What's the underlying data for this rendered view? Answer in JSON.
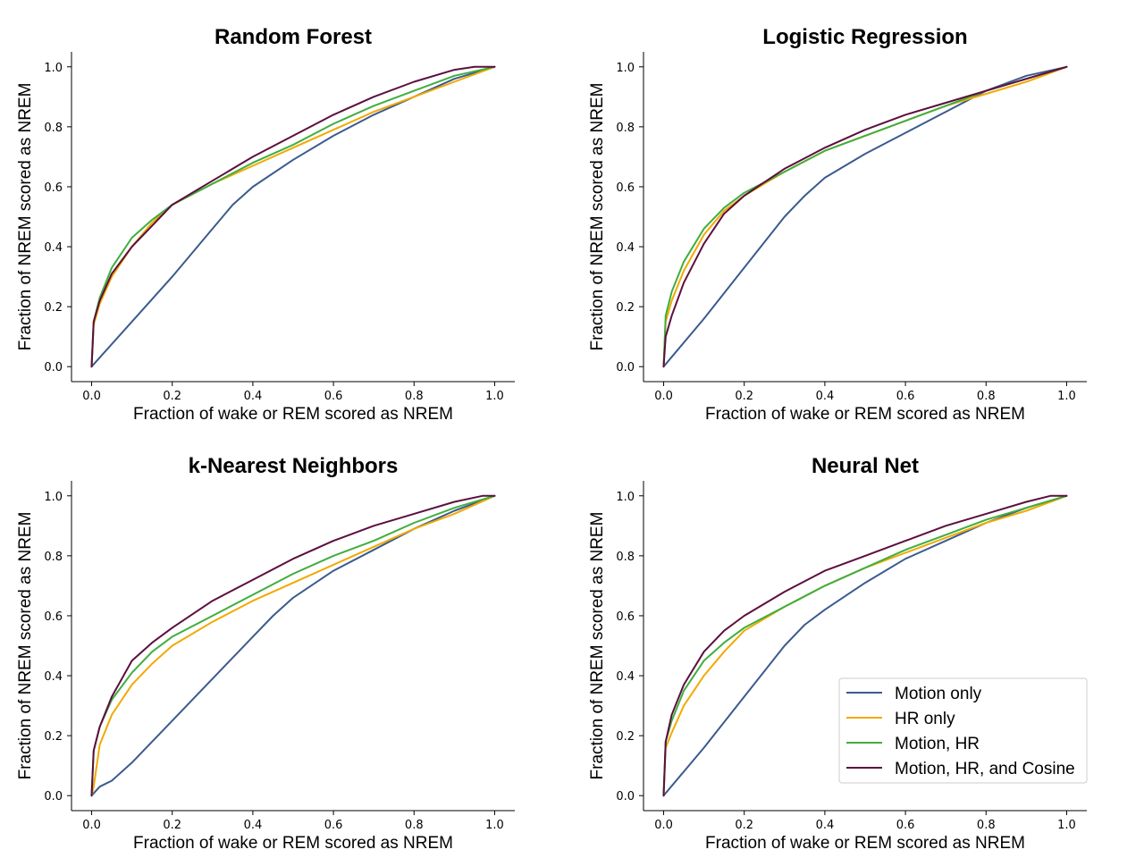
{
  "figure": {
    "legend": {
      "placement": "lower-right",
      "panel_index": 3,
      "entries": [
        "Motion only",
        "HR only",
        "Motion, HR",
        "Motion, HR, and Cosine"
      ]
    }
  },
  "chart_data": [
    {
      "type": "line",
      "title": "Random Forest",
      "xlabel": "Fraction of wake or REM scored as NREM",
      "ylabel": "Fraction of NREM scored as NREM",
      "xlim": [
        -0.05,
        1.05
      ],
      "ylim": [
        -0.05,
        1.05
      ],
      "xticks": [
        "0.0",
        "0.2",
        "0.4",
        "0.6",
        "0.8",
        "1.0"
      ],
      "yticks": [
        "0.0",
        "0.2",
        "0.4",
        "0.6",
        "0.8",
        "1.0"
      ],
      "grid": false,
      "series": [
        {
          "name": "Motion only",
          "color": "#3b5b8e",
          "x": [
            0,
            0.1,
            0.2,
            0.3,
            0.35,
            0.4,
            0.5,
            0.6,
            0.7,
            0.8,
            0.9,
            1.0
          ],
          "y": [
            0,
            0.15,
            0.3,
            0.46,
            0.54,
            0.6,
            0.69,
            0.77,
            0.84,
            0.9,
            0.96,
            1.0
          ]
        },
        {
          "name": "HR only",
          "color": "#f2a900",
          "x": [
            0,
            0.005,
            0.02,
            0.05,
            0.1,
            0.15,
            0.2,
            0.3,
            0.4,
            0.5,
            0.6,
            0.7,
            0.8,
            0.9,
            1.0
          ],
          "y": [
            0,
            0.14,
            0.21,
            0.3,
            0.4,
            0.48,
            0.54,
            0.61,
            0.67,
            0.73,
            0.79,
            0.85,
            0.9,
            0.95,
            1.0
          ]
        },
        {
          "name": "Motion, HR",
          "color": "#3fae3f",
          "x": [
            0,
            0.005,
            0.02,
            0.05,
            0.1,
            0.15,
            0.2,
            0.3,
            0.4,
            0.5,
            0.6,
            0.7,
            0.8,
            0.9,
            1.0
          ],
          "y": [
            0,
            0.15,
            0.23,
            0.33,
            0.43,
            0.49,
            0.54,
            0.61,
            0.68,
            0.74,
            0.81,
            0.87,
            0.92,
            0.97,
            1.0
          ]
        },
        {
          "name": "Motion, HR, and Cosine",
          "color": "#5c0f3e",
          "x": [
            0,
            0.005,
            0.02,
            0.05,
            0.1,
            0.15,
            0.2,
            0.3,
            0.4,
            0.5,
            0.6,
            0.7,
            0.8,
            0.9,
            0.95,
            1.0
          ],
          "y": [
            0,
            0.15,
            0.22,
            0.31,
            0.4,
            0.47,
            0.54,
            0.62,
            0.7,
            0.77,
            0.84,
            0.9,
            0.95,
            0.99,
            1.0,
            1.0
          ]
        }
      ]
    },
    {
      "type": "line",
      "title": "Logistic Regression",
      "xlabel": "Fraction of wake or REM scored as NREM",
      "ylabel": "Fraction of NREM scored as NREM",
      "xlim": [
        -0.05,
        1.05
      ],
      "ylim": [
        -0.05,
        1.05
      ],
      "xticks": [
        "0.0",
        "0.2",
        "0.4",
        "0.6",
        "0.8",
        "1.0"
      ],
      "yticks": [
        "0.0",
        "0.2",
        "0.4",
        "0.6",
        "0.8",
        "1.0"
      ],
      "grid": false,
      "series": [
        {
          "name": "Motion only",
          "color": "#3b5b8e",
          "x": [
            0,
            0.1,
            0.2,
            0.3,
            0.35,
            0.4,
            0.5,
            0.6,
            0.7,
            0.8,
            0.9,
            1.0
          ],
          "y": [
            0,
            0.16,
            0.33,
            0.5,
            0.57,
            0.63,
            0.71,
            0.78,
            0.85,
            0.92,
            0.97,
            1.0
          ]
        },
        {
          "name": "HR only",
          "color": "#f2a900",
          "x": [
            0,
            0.005,
            0.02,
            0.05,
            0.1,
            0.15,
            0.2,
            0.3,
            0.4,
            0.5,
            0.6,
            0.7,
            0.8,
            0.9,
            1.0
          ],
          "y": [
            0,
            0.15,
            0.22,
            0.32,
            0.44,
            0.52,
            0.57,
            0.65,
            0.72,
            0.77,
            0.82,
            0.87,
            0.91,
            0.95,
            1.0
          ]
        },
        {
          "name": "Motion, HR",
          "color": "#3fae3f",
          "x": [
            0,
            0.005,
            0.02,
            0.05,
            0.1,
            0.15,
            0.2,
            0.3,
            0.4,
            0.5,
            0.6,
            0.7,
            0.8,
            0.9,
            1.0
          ],
          "y": [
            0,
            0.17,
            0.25,
            0.35,
            0.46,
            0.53,
            0.58,
            0.65,
            0.72,
            0.77,
            0.82,
            0.87,
            0.92,
            0.96,
            1.0
          ]
        },
        {
          "name": "Motion, HR, and Cosine",
          "color": "#5c0f3e",
          "x": [
            0,
            0.005,
            0.02,
            0.05,
            0.1,
            0.15,
            0.2,
            0.3,
            0.4,
            0.5,
            0.6,
            0.7,
            0.8,
            0.9,
            1.0
          ],
          "y": [
            0,
            0.1,
            0.17,
            0.28,
            0.41,
            0.51,
            0.57,
            0.66,
            0.73,
            0.79,
            0.84,
            0.88,
            0.92,
            0.96,
            1.0
          ]
        }
      ]
    },
    {
      "type": "line",
      "title": "k-Nearest Neighbors",
      "xlabel": "Fraction of wake or REM scored as NREM",
      "ylabel": "Fraction of NREM scored as NREM",
      "xlim": [
        -0.05,
        1.05
      ],
      "ylim": [
        -0.05,
        1.05
      ],
      "xticks": [
        "0.0",
        "0.2",
        "0.4",
        "0.6",
        "0.8",
        "1.0"
      ],
      "yticks": [
        "0.0",
        "0.2",
        "0.4",
        "0.6",
        "0.8",
        "1.0"
      ],
      "grid": false,
      "series": [
        {
          "name": "Motion only",
          "color": "#3b5b8e",
          "x": [
            0,
            0.02,
            0.05,
            0.1,
            0.2,
            0.3,
            0.4,
            0.45,
            0.5,
            0.6,
            0.7,
            0.8,
            0.9,
            1.0
          ],
          "y": [
            0,
            0.03,
            0.05,
            0.11,
            0.25,
            0.39,
            0.53,
            0.6,
            0.66,
            0.75,
            0.82,
            0.89,
            0.95,
            1.0
          ]
        },
        {
          "name": "HR only",
          "color": "#f2a900",
          "x": [
            0,
            0.005,
            0.02,
            0.05,
            0.1,
            0.15,
            0.2,
            0.3,
            0.4,
            0.5,
            0.6,
            0.7,
            0.8,
            0.9,
            1.0
          ],
          "y": [
            0,
            0.03,
            0.17,
            0.27,
            0.37,
            0.44,
            0.5,
            0.58,
            0.65,
            0.71,
            0.77,
            0.83,
            0.89,
            0.94,
            1.0
          ]
        },
        {
          "name": "Motion, HR",
          "color": "#3fae3f",
          "x": [
            0,
            0.005,
            0.02,
            0.05,
            0.1,
            0.15,
            0.2,
            0.3,
            0.4,
            0.5,
            0.6,
            0.7,
            0.8,
            0.9,
            1.0
          ],
          "y": [
            0,
            0.15,
            0.23,
            0.32,
            0.41,
            0.48,
            0.53,
            0.6,
            0.67,
            0.74,
            0.8,
            0.85,
            0.91,
            0.96,
            1.0
          ]
        },
        {
          "name": "Motion, HR, and Cosine",
          "color": "#5c0f3e",
          "x": [
            0,
            0.005,
            0.02,
            0.05,
            0.1,
            0.15,
            0.2,
            0.3,
            0.4,
            0.5,
            0.6,
            0.7,
            0.8,
            0.9,
            0.97,
            1.0
          ],
          "y": [
            0,
            0.15,
            0.23,
            0.33,
            0.45,
            0.51,
            0.56,
            0.65,
            0.72,
            0.79,
            0.85,
            0.9,
            0.94,
            0.98,
            1.0,
            1.0
          ]
        }
      ]
    },
    {
      "type": "line",
      "title": "Neural Net",
      "xlabel": "Fraction of wake or REM scored as NREM",
      "ylabel": "Fraction of NREM scored as NREM",
      "xlim": [
        -0.05,
        1.05
      ],
      "ylim": [
        -0.05,
        1.05
      ],
      "xticks": [
        "0.0",
        "0.2",
        "0.4",
        "0.6",
        "0.8",
        "1.0"
      ],
      "yticks": [
        "0.0",
        "0.2",
        "0.4",
        "0.6",
        "0.8",
        "1.0"
      ],
      "grid": false,
      "legend": "lower-right",
      "series": [
        {
          "name": "Motion only",
          "color": "#3b5b8e",
          "x": [
            0,
            0.1,
            0.2,
            0.3,
            0.35,
            0.4,
            0.5,
            0.6,
            0.7,
            0.8,
            0.9,
            1.0
          ],
          "y": [
            0,
            0.16,
            0.33,
            0.5,
            0.57,
            0.62,
            0.71,
            0.79,
            0.85,
            0.91,
            0.96,
            1.0
          ]
        },
        {
          "name": "HR only",
          "color": "#f2a900",
          "x": [
            0,
            0.005,
            0.02,
            0.05,
            0.1,
            0.15,
            0.2,
            0.3,
            0.4,
            0.5,
            0.6,
            0.7,
            0.8,
            0.9,
            1.0
          ],
          "y": [
            0,
            0.16,
            0.21,
            0.3,
            0.4,
            0.48,
            0.55,
            0.63,
            0.7,
            0.76,
            0.81,
            0.86,
            0.91,
            0.95,
            1.0
          ]
        },
        {
          "name": "Motion, HR",
          "color": "#3fae3f",
          "x": [
            0,
            0.005,
            0.02,
            0.05,
            0.1,
            0.15,
            0.2,
            0.3,
            0.4,
            0.5,
            0.6,
            0.7,
            0.8,
            0.9,
            1.0
          ],
          "y": [
            0,
            0.18,
            0.25,
            0.35,
            0.45,
            0.51,
            0.56,
            0.63,
            0.7,
            0.76,
            0.82,
            0.87,
            0.92,
            0.96,
            1.0
          ]
        },
        {
          "name": "Motion, HR, and Cosine",
          "color": "#5c0f3e",
          "x": [
            0,
            0.005,
            0.02,
            0.05,
            0.1,
            0.15,
            0.2,
            0.3,
            0.4,
            0.5,
            0.6,
            0.7,
            0.8,
            0.9,
            0.96,
            1.0
          ],
          "y": [
            0,
            0.18,
            0.27,
            0.37,
            0.48,
            0.55,
            0.6,
            0.68,
            0.75,
            0.8,
            0.85,
            0.9,
            0.94,
            0.98,
            1.0,
            1.0
          ]
        }
      ]
    }
  ]
}
